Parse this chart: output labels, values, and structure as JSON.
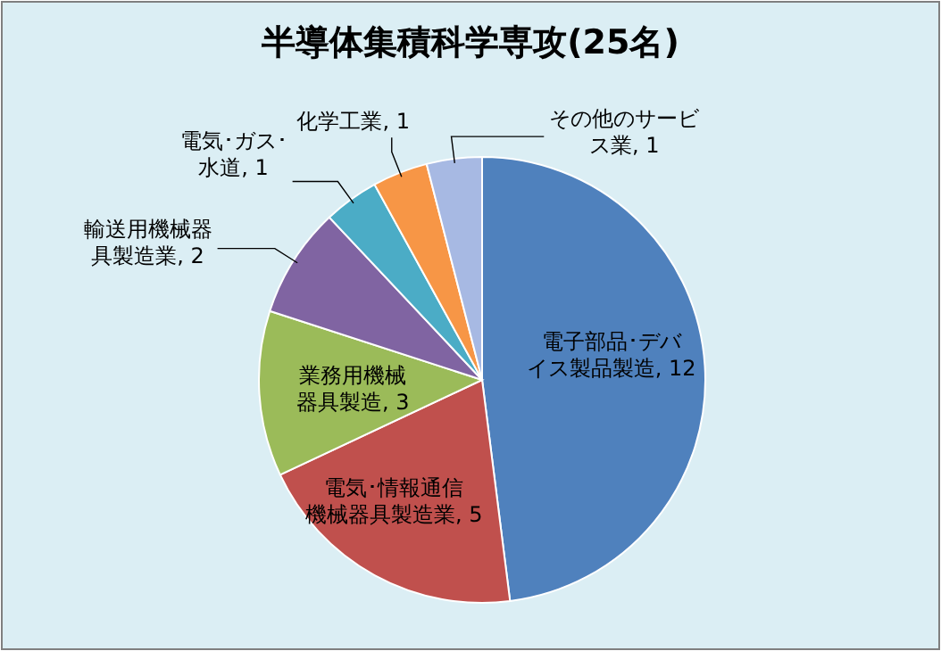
{
  "chart_data": {
    "type": "pie",
    "title": "半導体集積科学専攻(25名)",
    "categories": [
      "電子部品･デバイス製品製造",
      "電気･情報通信機械器具製造業",
      "業務用機械器具製造",
      "輸送用機械器具製造業",
      "電気･ガス･水道",
      "化学工業",
      "その他のサービス業"
    ],
    "values": [
      12,
      5,
      3,
      2,
      1,
      1,
      1
    ],
    "colors": [
      "#4f81bd",
      "#c0504d",
      "#9bbb59",
      "#8064a2",
      "#4bacc6",
      "#f79646",
      "#a7b9e3"
    ],
    "value_labels": [
      ", 12",
      ", 5",
      ", 3",
      ", 2",
      ", 1",
      ", 1",
      ", 1"
    ]
  }
}
